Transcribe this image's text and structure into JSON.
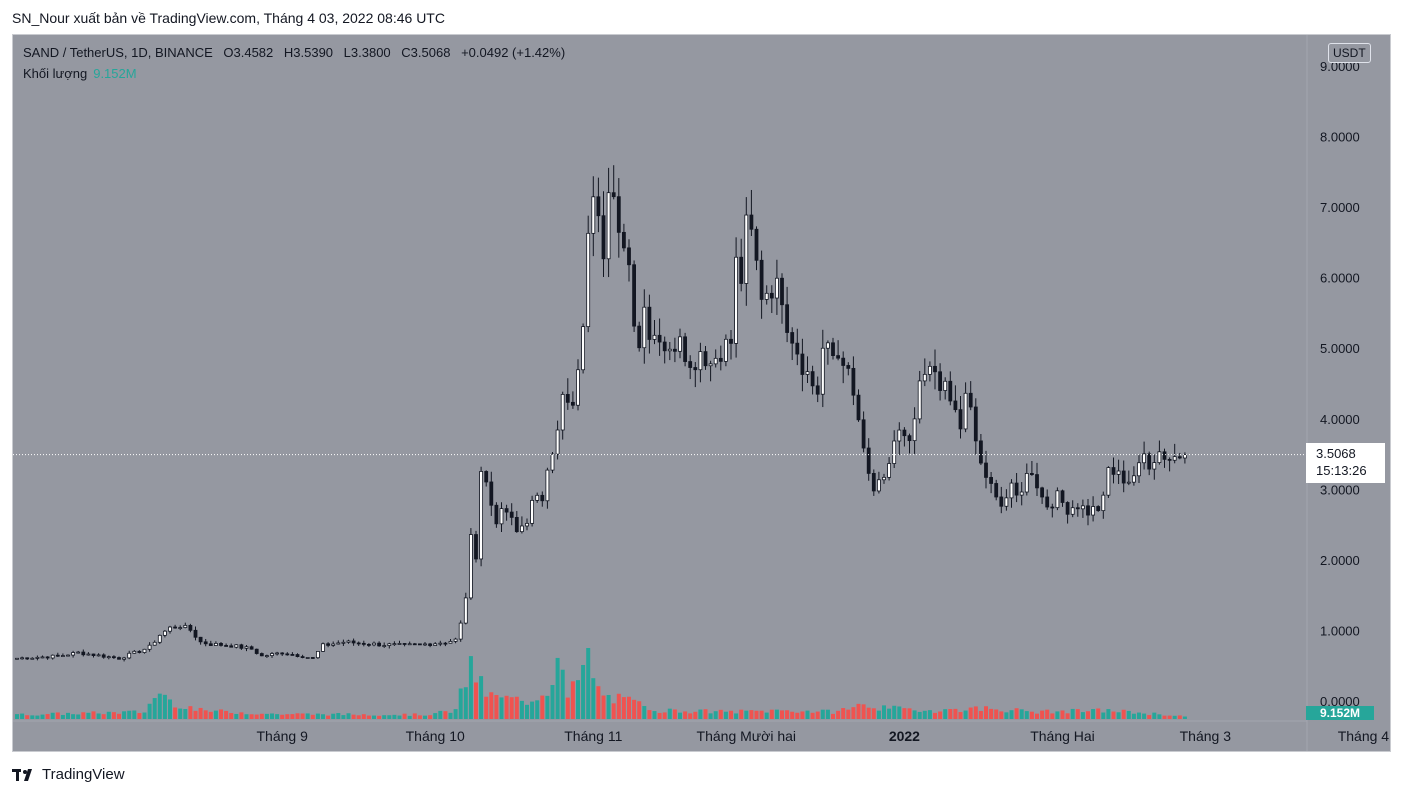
{
  "caption": "SN_Nour xuất bản về TradingView.com, Tháng 4 03, 2022 08:46 UTC",
  "legend": {
    "symbol": "SAND / TetherUS, 1D, BINANCE",
    "open": "O3.4582",
    "high": "H3.5390",
    "low": "L3.3800",
    "close": "C3.5068",
    "change": "+0.0492 (+1.42%)",
    "volume_label": "Khối lượng",
    "volume_value": "9.152M"
  },
  "currency_badge": "USDT",
  "last_price": "3.5068",
  "countdown": "15:13:26",
  "last_volume": "9.152M",
  "brand": "TradingView",
  "colors": {
    "background": "#9598a1",
    "candle": "#131722",
    "candle_up_fill": "#ffffff",
    "volume_up": "#26a69a",
    "volume_down": "#ef5350"
  },
  "chart_data": {
    "type": "candlestick",
    "symbol": "SAND/USDT",
    "interval": "1D",
    "y_ticks": [
      "0.0000",
      "1.0000",
      "2.0000",
      "3.0000",
      "4.0000",
      "5.0000",
      "6.0000",
      "7.0000",
      "8.0000",
      "9.0000"
    ],
    "ylim": [
      0,
      9.3
    ],
    "x_labels": [
      {
        "label": "Tháng 9",
        "index": 52,
        "bold": false
      },
      {
        "label": "Tháng 10",
        "index": 82,
        "bold": false
      },
      {
        "label": "Tháng 11",
        "index": 113,
        "bold": false
      },
      {
        "label": "Tháng Mười hai",
        "index": 143,
        "bold": false
      },
      {
        "label": "2022",
        "index": 174,
        "bold": true
      },
      {
        "label": "Tháng Hai",
        "index": 205,
        "bold": false
      },
      {
        "label": "Tháng 3",
        "index": 233,
        "bold": false
      },
      {
        "label": "Tháng 4",
        "index": 264,
        "bold": false
      }
    ],
    "close_anchors": [
      [
        0,
        0.62
      ],
      [
        8,
        0.65
      ],
      [
        12,
        0.7
      ],
      [
        16,
        0.66
      ],
      [
        20,
        0.62
      ],
      [
        24,
        0.72
      ],
      [
        26,
        0.78
      ],
      [
        28,
        0.95
      ],
      [
        30,
        1.05
      ],
      [
        32,
        1.08
      ],
      [
        34,
        1.02
      ],
      [
        36,
        0.85
      ],
      [
        38,
        0.82
      ],
      [
        42,
        0.8
      ],
      [
        46,
        0.75
      ],
      [
        48,
        0.65
      ],
      [
        52,
        0.7
      ],
      [
        56,
        0.65
      ],
      [
        58,
        0.62
      ],
      [
        60,
        0.8
      ],
      [
        64,
        0.85
      ],
      [
        70,
        0.82
      ],
      [
        76,
        0.8
      ],
      [
        80,
        0.82
      ],
      [
        84,
        0.85
      ],
      [
        86,
        0.88
      ],
      [
        87,
        1.1
      ],
      [
        88,
        1.5
      ],
      [
        89,
        2.3
      ],
      [
        90,
        2.1
      ],
      [
        91,
        3.3
      ],
      [
        92,
        3.1
      ],
      [
        93,
        2.8
      ],
      [
        94,
        2.6
      ],
      [
        96,
        2.7
      ],
      [
        98,
        2.4
      ],
      [
        100,
        2.6
      ],
      [
        101,
        2.8
      ],
      [
        103,
        2.9
      ],
      [
        104,
        3.4
      ],
      [
        106,
        3.8
      ],
      [
        107,
        4.3
      ],
      [
        108,
        4.2
      ],
      [
        109,
        4.1
      ],
      [
        110,
        4.8
      ],
      [
        111,
        5.2
      ],
      [
        112,
        6.8
      ],
      [
        113,
        7.4
      ],
      [
        114,
        7.1
      ],
      [
        115,
        6.5
      ],
      [
        116,
        7.2
      ],
      [
        117,
        7.0
      ],
      [
        118,
        6.5
      ],
      [
        119,
        6.6
      ],
      [
        120,
        6.2
      ],
      [
        121,
        5.5
      ],
      [
        122,
        5.1
      ],
      [
        123,
        5.6
      ],
      [
        124,
        5.3
      ],
      [
        126,
        5.2
      ],
      [
        128,
        4.9
      ],
      [
        130,
        5.3
      ],
      [
        132,
        4.7
      ],
      [
        134,
        5.0
      ],
      [
        136,
        4.8
      ],
      [
        138,
        5.0
      ],
      [
        140,
        5.1
      ],
      [
        141,
        6.2
      ],
      [
        142,
        6.0
      ],
      [
        143,
        6.7
      ],
      [
        144,
        6.6
      ],
      [
        145,
        6.2
      ],
      [
        146,
        5.8
      ],
      [
        148,
        5.9
      ],
      [
        150,
        5.8
      ],
      [
        151,
        5.4
      ],
      [
        152,
        5.2
      ],
      [
        154,
        4.8
      ],
      [
        156,
        4.5
      ],
      [
        157,
        4.4
      ],
      [
        158,
        5.0
      ],
      [
        160,
        4.9
      ],
      [
        162,
        4.9
      ],
      [
        163,
        4.6
      ],
      [
        164,
        4.3
      ],
      [
        165,
        4.0
      ],
      [
        166,
        3.5
      ],
      [
        167,
        3.2
      ],
      [
        168,
        3.0
      ],
      [
        170,
        3.1
      ],
      [
        171,
        3.4
      ],
      [
        172,
        3.7
      ],
      [
        173,
        3.8
      ],
      [
        175,
        3.6
      ],
      [
        176,
        4.0
      ],
      [
        177,
        4.4
      ],
      [
        178,
        4.6
      ],
      [
        180,
        4.7
      ],
      [
        182,
        4.4
      ],
      [
        184,
        4.1
      ],
      [
        185,
        3.9
      ],
      [
        186,
        4.3
      ],
      [
        187,
        4.1
      ],
      [
        188,
        3.7
      ],
      [
        189,
        3.4
      ],
      [
        190,
        3.1
      ],
      [
        192,
        3.0
      ],
      [
        193,
        2.8
      ],
      [
        195,
        3.0
      ],
      [
        196,
        2.9
      ],
      [
        198,
        3.2
      ],
      [
        199,
        3.3
      ],
      [
        200,
        3.1
      ],
      [
        201,
        2.9
      ],
      [
        202,
        2.8
      ],
      [
        204,
        2.9
      ],
      [
        206,
        2.75
      ],
      [
        208,
        2.8
      ],
      [
        210,
        2.7
      ],
      [
        212,
        2.75
      ],
      [
        213,
        2.85
      ],
      [
        214,
        3.3
      ],
      [
        216,
        3.2
      ],
      [
        218,
        3.15
      ],
      [
        220,
        3.3
      ],
      [
        221,
        3.5
      ],
      [
        222,
        3.4
      ],
      [
        224,
        3.55
      ],
      [
        226,
        3.45
      ],
      [
        228,
        3.5
      ],
      [
        229,
        3.5068
      ]
    ],
    "volume_anchors": [
      [
        0,
        0.06
      ],
      [
        25,
        0.1
      ],
      [
        28,
        0.4
      ],
      [
        30,
        0.25
      ],
      [
        36,
        0.12
      ],
      [
        50,
        0.07
      ],
      [
        80,
        0.06
      ],
      [
        86,
        0.12
      ],
      [
        88,
        0.55
      ],
      [
        89,
        0.75
      ],
      [
        90,
        0.6
      ],
      [
        92,
        0.35
      ],
      [
        94,
        0.3
      ],
      [
        100,
        0.25
      ],
      [
        104,
        0.4
      ],
      [
        106,
        0.85
      ],
      [
        108,
        0.3
      ],
      [
        110,
        0.55
      ],
      [
        112,
        0.85
      ],
      [
        114,
        0.4
      ],
      [
        116,
        0.3
      ],
      [
        120,
        0.25
      ],
      [
        126,
        0.12
      ],
      [
        140,
        0.1
      ],
      [
        150,
        0.12
      ],
      [
        160,
        0.1
      ],
      [
        166,
        0.2
      ],
      [
        170,
        0.15
      ],
      [
        180,
        0.12
      ],
      [
        190,
        0.15
      ],
      [
        200,
        0.1
      ],
      [
        214,
        0.12
      ],
      [
        229,
        0.04
      ]
    ],
    "last": {
      "open": 3.4582,
      "high": 3.539,
      "low": 3.38,
      "close": 3.5068,
      "change": 0.0492,
      "change_pct": 1.42
    }
  }
}
